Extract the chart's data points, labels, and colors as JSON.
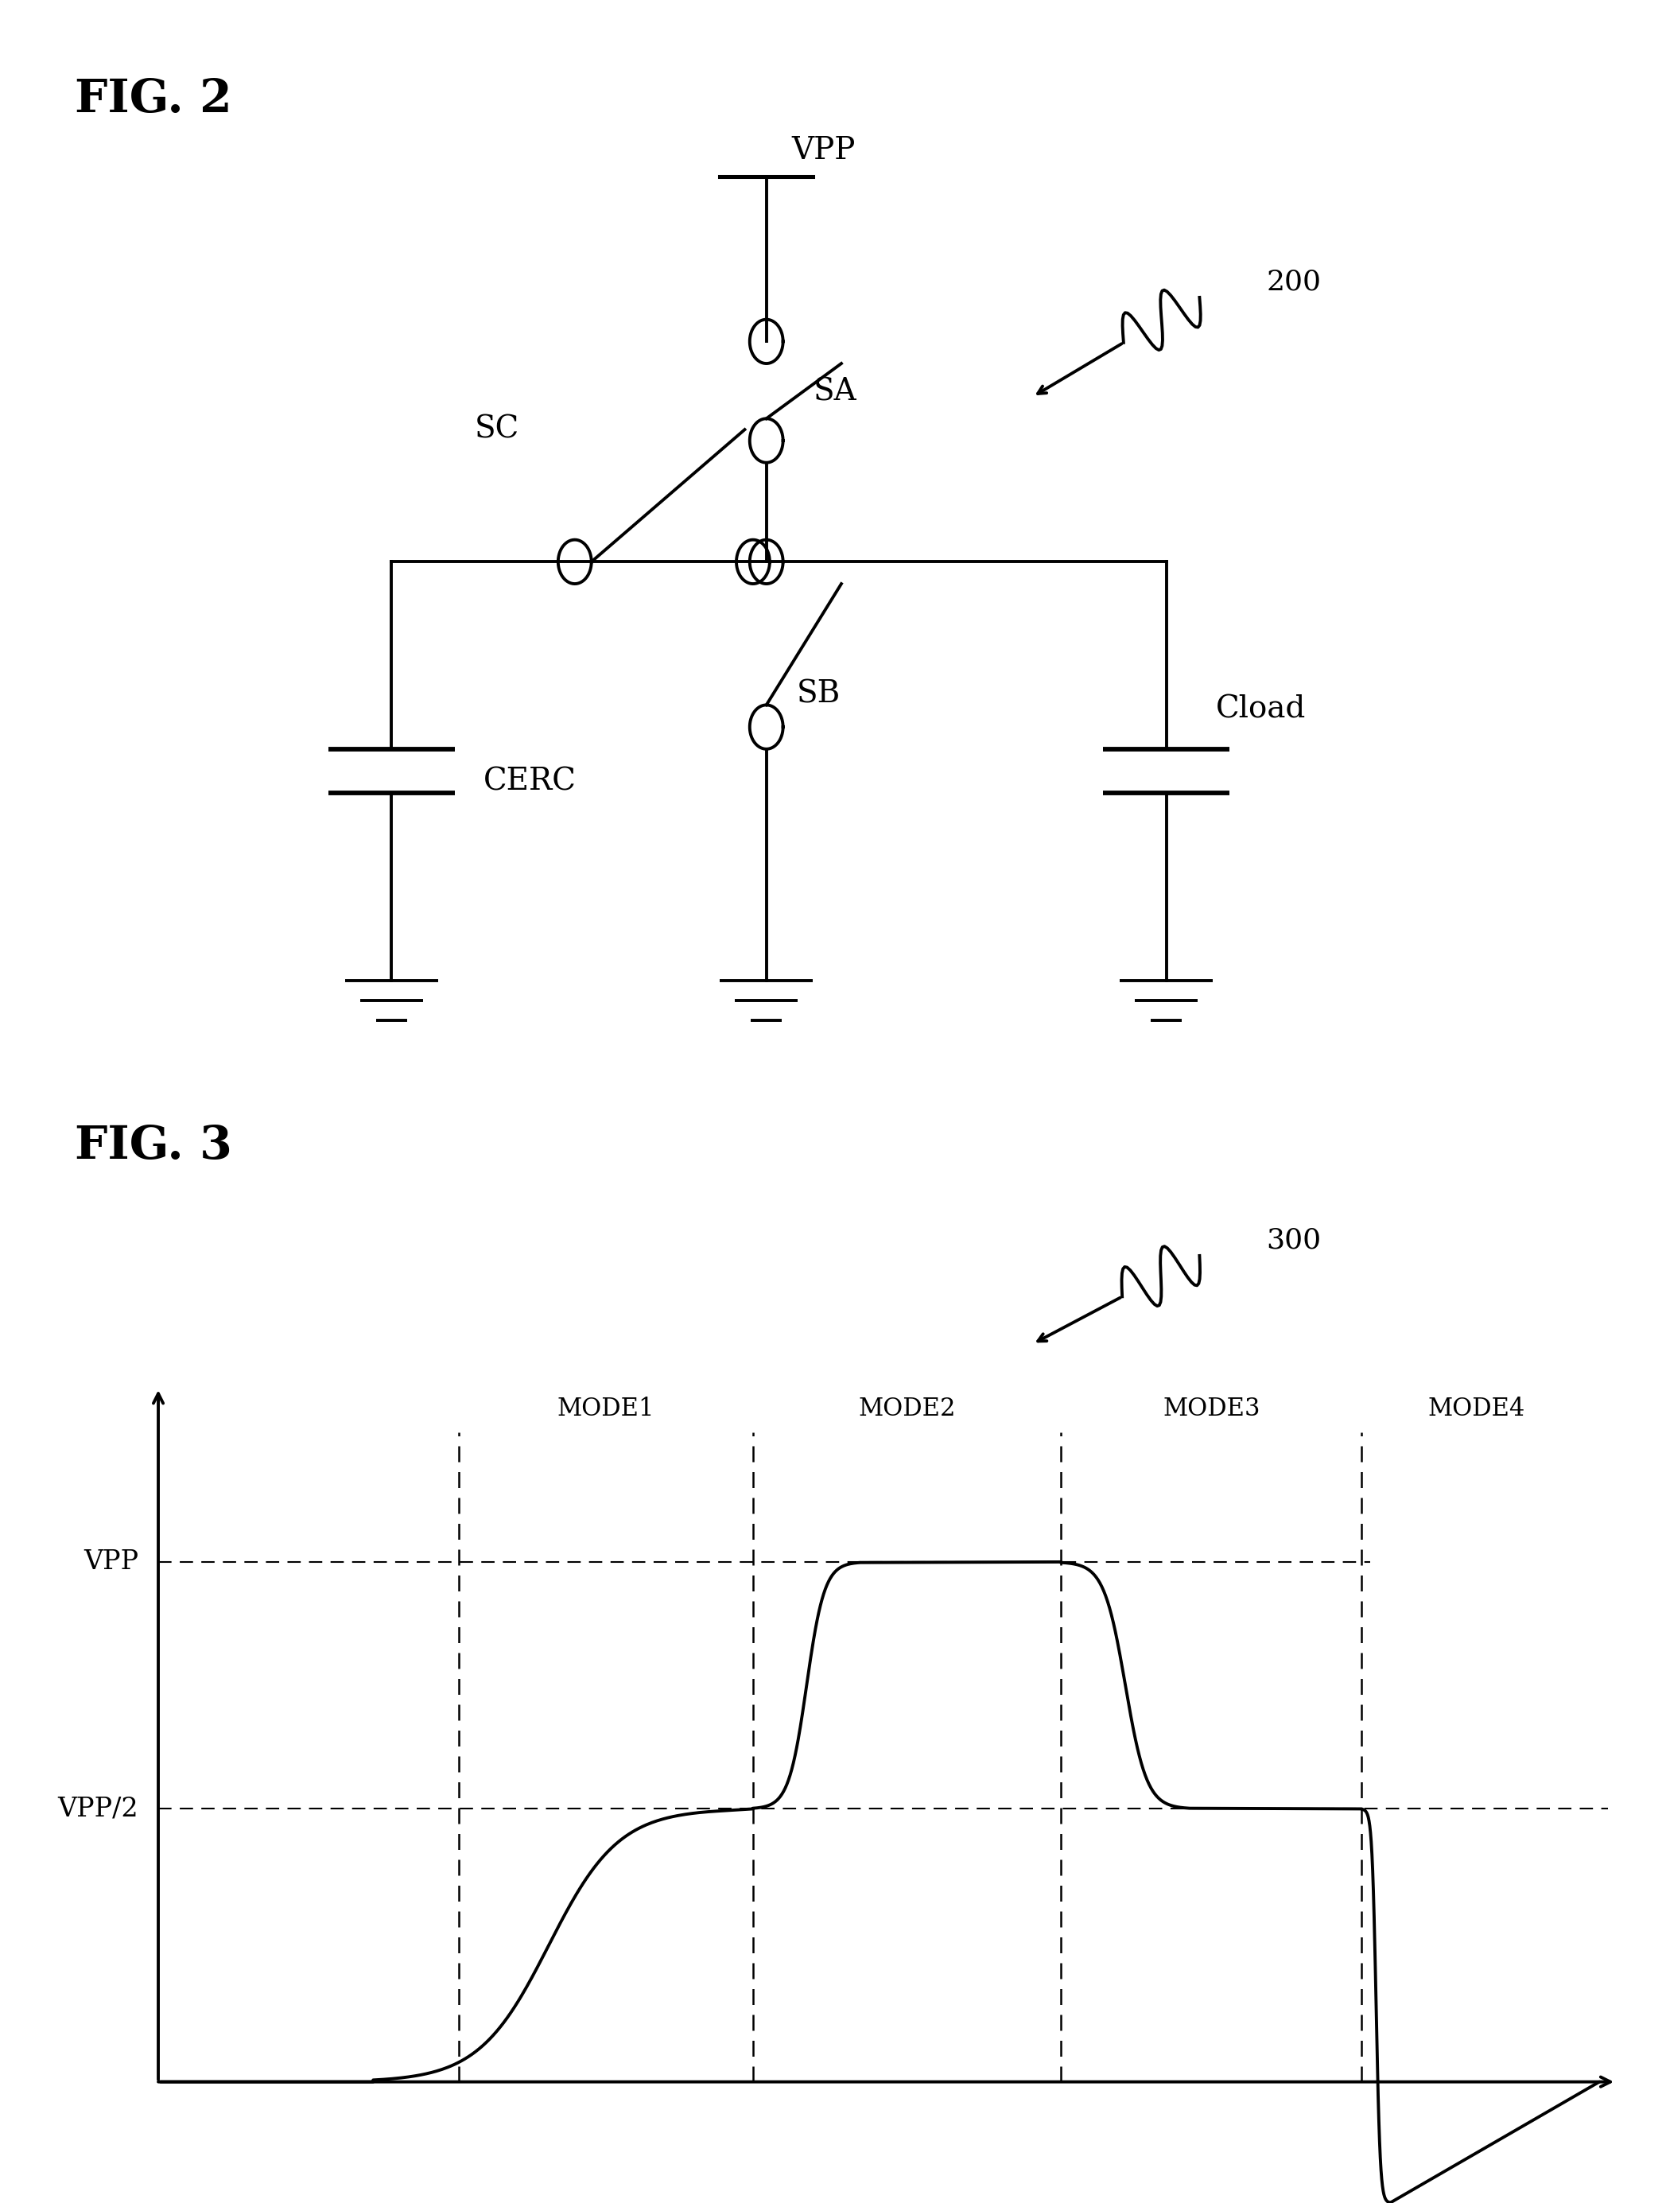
{
  "fig2_title": "FIG. 2",
  "fig3_title": "FIG. 3",
  "ref_200": "200",
  "ref_300": "300",
  "bg_color": "#ffffff",
  "line_color": "#000000",
  "fig2_labels": {
    "VPP": "VPP",
    "SA": "SA",
    "SB": "SB",
    "SC": "SC",
    "CERC": "CERC",
    "Cload": "Cload"
  },
  "fig3_labels": {
    "VPP": "VPP",
    "VPP2": "VPP/2",
    "MODE1": "MODE1",
    "MODE2": "MODE2",
    "MODE3": "MODE3",
    "MODE4": "MODE4"
  },
  "lw": 2.8,
  "title_fontsize": 42,
  "label_fontsize": 28,
  "ref_fontsize": 26
}
